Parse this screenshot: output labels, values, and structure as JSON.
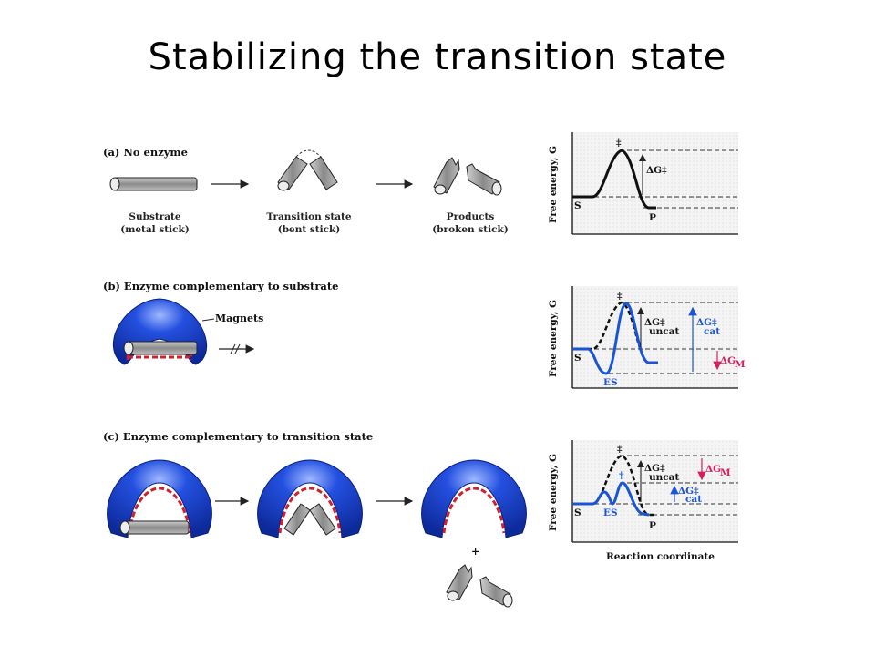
{
  "title": "Stabilizing the transition state",
  "sections": {
    "a": {
      "label": "(a) No enzyme",
      "substrate": [
        "Substrate",
        "(metal stick)"
      ],
      "transition": [
        "Transition state",
        "(bent stick)"
      ],
      "products": [
        "Products",
        "(broken stick)"
      ]
    },
    "b": {
      "label": "(b) Enzyme complementary to substrate",
      "magnets": "Magnets"
    },
    "c": {
      "label": "(c) Enzyme complementary to transition state"
    }
  },
  "graphs": {
    "ylabel": "Free energy, G",
    "xlabel": "Reaction coordinate",
    "s": "S",
    "p": "P",
    "es": "ES",
    "ddagger": "‡",
    "dg": "ΔG‡",
    "dg_uncat": "ΔG‡",
    "sub_uncat": "uncat",
    "dg_cat": "ΔG‡",
    "sub_cat": "cat",
    "dg_m": "ΔG",
    "sub_m": "M"
  },
  "colors": {
    "enzyme": "#1440c8",
    "magnet": "#d02030",
    "cat": "#1a55d6",
    "dgm": "#d81e5b"
  }
}
